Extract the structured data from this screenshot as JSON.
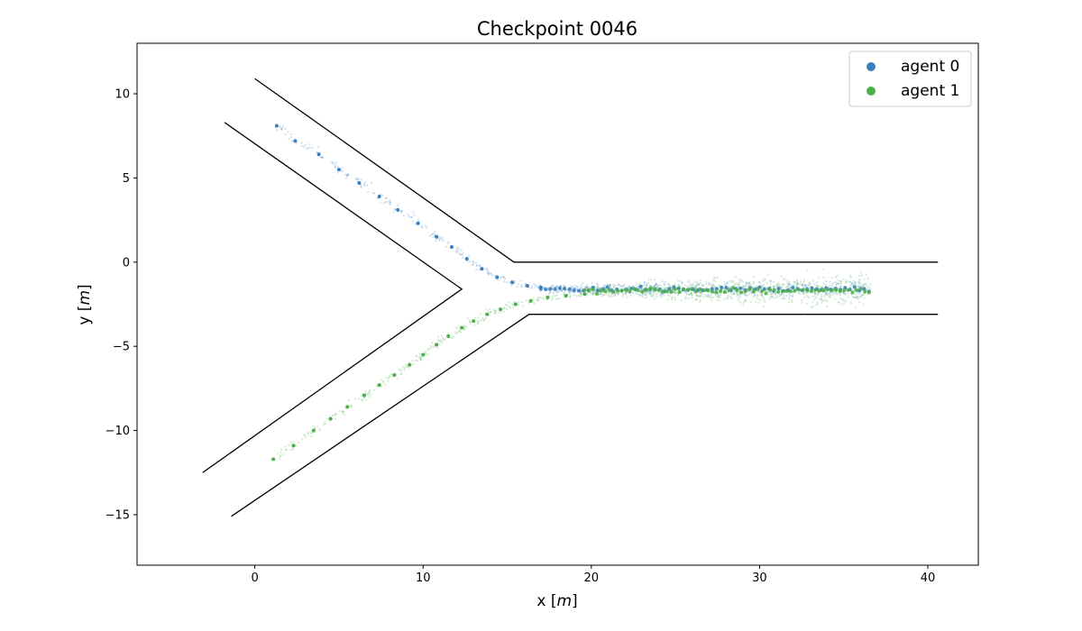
{
  "chart_data": {
    "type": "scatter",
    "title": "Checkpoint 0046",
    "xlabel_text": "x ",
    "xlabel_unit": "m",
    "ylabel_text": "y ",
    "ylabel_unit": "m",
    "xlim": [
      -7,
      43
    ],
    "ylim": [
      -18,
      13
    ],
    "xticks": [
      0,
      10,
      20,
      30,
      40
    ],
    "yticks": [
      -15,
      -10,
      -5,
      0,
      5,
      10
    ],
    "xtick_labels": [
      "0",
      "10",
      "20",
      "30",
      "40"
    ],
    "ytick_labels": [
      "−15",
      "−10",
      "−5",
      "0",
      "5",
      "10"
    ],
    "grid": false,
    "legend_position": "top-right",
    "road_boundaries": [
      {
        "points": [
          [
            0,
            10.9
          ],
          [
            15.4,
            0
          ],
          [
            40.6,
            0
          ]
        ]
      },
      {
        "points": [
          [
            -1.8,
            8.3
          ],
          [
            12.3,
            -1.6
          ],
          [
            -3.1,
            -12.5
          ]
        ]
      },
      {
        "points": [
          [
            -1.4,
            -15.1
          ],
          [
            16.3,
            -3.1
          ],
          [
            40.6,
            -3.1
          ]
        ]
      }
    ],
    "series": [
      {
        "name": "agent 0",
        "color": "#3a7fbf",
        "path": [
          [
            1.3,
            8.1
          ],
          [
            2.4,
            7.2
          ],
          [
            3.8,
            6.4
          ],
          [
            5.0,
            5.5
          ],
          [
            6.2,
            4.7
          ],
          [
            7.4,
            3.9
          ],
          [
            8.5,
            3.1
          ],
          [
            9.7,
            2.3
          ],
          [
            10.8,
            1.5
          ],
          [
            11.7,
            0.9
          ],
          [
            12.6,
            0.2
          ],
          [
            13.5,
            -0.4
          ],
          [
            14.4,
            -0.9
          ],
          [
            15.3,
            -1.2
          ],
          [
            16.2,
            -1.4
          ],
          [
            17.0,
            -1.5
          ]
        ],
        "band": {
          "x_start": 17.0,
          "x_end": 36.5,
          "y": -1.6,
          "spread": 0.35
        }
      },
      {
        "name": "agent 1",
        "color": "#4daf4a",
        "path": [
          [
            1.1,
            -11.7
          ],
          [
            2.3,
            -10.9
          ],
          [
            3.5,
            -10.0
          ],
          [
            4.5,
            -9.3
          ],
          [
            5.5,
            -8.6
          ],
          [
            6.5,
            -7.9
          ],
          [
            7.4,
            -7.3
          ],
          [
            8.3,
            -6.7
          ],
          [
            9.2,
            -6.1
          ],
          [
            10.0,
            -5.5
          ],
          [
            10.8,
            -4.9
          ],
          [
            11.5,
            -4.4
          ],
          [
            12.3,
            -3.9
          ],
          [
            13.0,
            -3.5
          ],
          [
            13.8,
            -3.1
          ],
          [
            14.6,
            -2.8
          ],
          [
            15.5,
            -2.5
          ],
          [
            16.4,
            -2.3
          ],
          [
            17.4,
            -2.1
          ],
          [
            18.5,
            -2.0
          ],
          [
            19.6,
            -1.9
          ]
        ],
        "band": {
          "x_start": 19.6,
          "x_end": 36.5,
          "y": -1.7,
          "spread": 0.5
        }
      }
    ]
  }
}
